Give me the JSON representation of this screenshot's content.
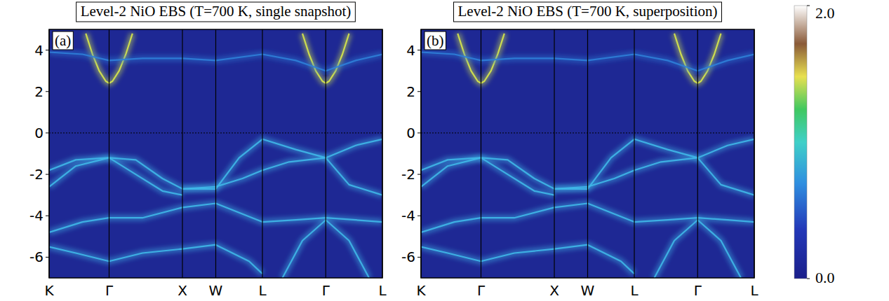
{
  "chart_data": [
    {
      "type": "line",
      "title": "Level-2 NiO EBS (T=700 K, single snapshot)",
      "panel": "(a)",
      "xlim": [
        0,
        5.0
      ],
      "xticks": [
        {
          "value": 0,
          "label": "K"
        },
        {
          "value": 0.9,
          "label": "Γ"
        },
        {
          "value": 2.0,
          "label": "X"
        },
        {
          "value": 2.5,
          "label": "W"
        },
        {
          "value": 3.2,
          "label": "L"
        },
        {
          "value": 4.15,
          "label": "Γ"
        },
        {
          "value": 5.0,
          "label": "L"
        }
      ],
      "ylim": [
        -7,
        5
      ],
      "yticks": [
        -6,
        -4,
        -2,
        0,
        2,
        4
      ],
      "hlines": [
        0
      ],
      "series": [
        {
          "color": "#d8e84a",
          "x": [
            0.55,
            0.65,
            0.75,
            0.85,
            0.9,
            0.95,
            1.05,
            1.15,
            1.25
          ],
          "values": [
            4.8,
            3.8,
            3.0,
            2.5,
            2.4,
            2.5,
            3.0,
            3.8,
            4.8
          ]
        },
        {
          "color": "#d8e84a",
          "x": [
            3.8,
            3.9,
            4.0,
            4.1,
            4.15,
            4.2,
            4.3,
            4.4,
            4.5
          ],
          "values": [
            4.8,
            3.8,
            3.0,
            2.5,
            2.4,
            2.5,
            3.0,
            3.8,
            4.8
          ]
        },
        {
          "color": "#2f7fd8",
          "x": [
            0,
            0.5,
            0.9,
            1.4,
            2.0,
            2.5,
            3.2,
            3.7,
            4.15,
            4.6,
            5.0
          ],
          "values": [
            3.9,
            3.8,
            3.5,
            3.6,
            3.6,
            3.5,
            3.8,
            3.5,
            3.0,
            3.5,
            3.8
          ]
        },
        {
          "color": "#3fb8e8",
          "x": [
            0,
            0.4,
            0.9,
            1.3,
            1.7,
            2.0,
            2.5,
            2.85,
            3.2,
            3.7,
            4.15,
            4.6,
            5.0
          ],
          "values": [
            -1.8,
            -1.3,
            -1.2,
            -1.3,
            -2.2,
            -2.7,
            -2.7,
            -1.2,
            -0.3,
            -0.8,
            -1.2,
            -0.6,
            -0.3
          ]
        },
        {
          "color": "#3fb8e8",
          "x": [
            0.9,
            1.3,
            1.7,
            2.0
          ],
          "values": [
            -1.2,
            -2.0,
            -2.8,
            -3.0
          ]
        },
        {
          "color": "#3fb8e8",
          "x": [
            0,
            0.4,
            0.9
          ],
          "values": [
            -2.6,
            -1.6,
            -1.2
          ]
        },
        {
          "color": "#3fb8e8",
          "x": [
            0,
            0.5,
            0.9,
            1.4,
            2.0,
            2.5,
            3.2,
            3.7,
            4.15,
            4.6,
            5.0
          ],
          "values": [
            -4.8,
            -4.3,
            -4.1,
            -4.1,
            -3.6,
            -3.4,
            -4.3,
            -4.2,
            -4.1,
            -4.2,
            -4.3
          ]
        },
        {
          "color": "#3fb8e8",
          "x": [
            0,
            0.4,
            0.9,
            1.4,
            2.0,
            2.5,
            3.0,
            3.2
          ],
          "values": [
            -5.5,
            -5.8,
            -6.2,
            -5.8,
            -5.6,
            -5.4,
            -6.2,
            -6.8
          ]
        },
        {
          "color": "#3fb8e8",
          "x": [
            3.5,
            3.8,
            4.15,
            4.5,
            4.8
          ],
          "values": [
            -7,
            -5.2,
            -4.2,
            -5.2,
            -7
          ]
        },
        {
          "color": "#3fb8e8",
          "x": [
            2.0,
            2.5,
            2.9,
            3.2,
            3.6,
            4.15
          ],
          "values": [
            -2.7,
            -2.6,
            -2.2,
            -1.8,
            -1.4,
            -1.2
          ]
        },
        {
          "color": "#3fb8e8",
          "x": [
            4.15,
            4.5,
            5.0
          ],
          "values": [
            -1.2,
            -2.5,
            -3.0
          ]
        }
      ]
    },
    {
      "type": "line",
      "title": "Level-2 NiO EBS (T=700 K, superposition)",
      "panel": "(b)",
      "xlim": [
        0,
        5.0
      ],
      "xticks": [
        {
          "value": 0,
          "label": "K"
        },
        {
          "value": 0.9,
          "label": "Γ"
        },
        {
          "value": 2.0,
          "label": "X"
        },
        {
          "value": 2.5,
          "label": "W"
        },
        {
          "value": 3.2,
          "label": "L"
        },
        {
          "value": 4.15,
          "label": "Γ"
        },
        {
          "value": 5.0,
          "label": "L"
        }
      ],
      "ylim": [
        -7,
        5
      ],
      "yticks": [
        -6,
        -4,
        -2,
        0,
        2,
        4
      ],
      "hlines": [
        0
      ],
      "series": [
        {
          "color": "#d8e84a",
          "x": [
            0.55,
            0.65,
            0.75,
            0.85,
            0.9,
            0.95,
            1.05,
            1.15,
            1.25
          ],
          "values": [
            4.8,
            3.8,
            3.0,
            2.5,
            2.4,
            2.5,
            3.0,
            3.8,
            4.8
          ]
        },
        {
          "color": "#d8e84a",
          "x": [
            3.8,
            3.9,
            4.0,
            4.1,
            4.15,
            4.2,
            4.3,
            4.4,
            4.5
          ],
          "values": [
            4.8,
            3.8,
            3.0,
            2.5,
            2.4,
            2.5,
            3.0,
            3.8,
            4.8
          ]
        },
        {
          "color": "#2f7fd8",
          "x": [
            0,
            0.5,
            0.9,
            1.4,
            2.0,
            2.5,
            3.2,
            3.7,
            4.15,
            4.6,
            5.0
          ],
          "values": [
            3.9,
            3.8,
            3.5,
            3.6,
            3.6,
            3.5,
            3.8,
            3.5,
            3.0,
            3.5,
            3.8
          ]
        },
        {
          "color": "#3fb8e8",
          "x": [
            0,
            0.4,
            0.9,
            1.3,
            1.7,
            2.0,
            2.5,
            2.85,
            3.2,
            3.7,
            4.15,
            4.6,
            5.0
          ],
          "values": [
            -1.8,
            -1.3,
            -1.2,
            -1.3,
            -2.2,
            -2.7,
            -2.7,
            -1.2,
            -0.3,
            -0.8,
            -1.2,
            -0.6,
            -0.3
          ]
        },
        {
          "color": "#3fb8e8",
          "x": [
            0.9,
            1.3,
            1.7,
            2.0
          ],
          "values": [
            -1.2,
            -2.0,
            -2.8,
            -3.0
          ]
        },
        {
          "color": "#3fb8e8",
          "x": [
            0,
            0.4,
            0.9
          ],
          "values": [
            -2.6,
            -1.6,
            -1.2
          ]
        },
        {
          "color": "#3fb8e8",
          "x": [
            0,
            0.5,
            0.9,
            1.4,
            2.0,
            2.5,
            3.2,
            3.7,
            4.15,
            4.6,
            5.0
          ],
          "values": [
            -4.8,
            -4.3,
            -4.1,
            -4.1,
            -3.6,
            -3.4,
            -4.3,
            -4.2,
            -4.1,
            -4.2,
            -4.3
          ]
        },
        {
          "color": "#3fb8e8",
          "x": [
            0,
            0.4,
            0.9,
            1.4,
            2.0,
            2.5,
            3.0,
            3.2
          ],
          "values": [
            -5.5,
            -5.8,
            -6.2,
            -5.8,
            -5.6,
            -5.4,
            -6.2,
            -6.8
          ]
        },
        {
          "color": "#3fb8e8",
          "x": [
            3.5,
            3.8,
            4.15,
            4.5,
            4.8
          ],
          "values": [
            -7,
            -5.2,
            -4.2,
            -5.2,
            -7
          ]
        },
        {
          "color": "#3fb8e8",
          "x": [
            2.0,
            2.5,
            2.9,
            3.2,
            3.6,
            4.15
          ],
          "values": [
            -2.7,
            -2.6,
            -2.2,
            -1.8,
            -1.4,
            -1.2
          ]
        },
        {
          "color": "#3fb8e8",
          "x": [
            4.15,
            4.5,
            5.0
          ],
          "values": [
            -1.2,
            -2.5,
            -3.0
          ]
        }
      ]
    }
  ],
  "colorbar": {
    "range": [
      0,
      2
    ],
    "ticks": [
      {
        "value": 0,
        "label": "0.0"
      },
      {
        "value": 2,
        "label": "2.0"
      }
    ]
  }
}
